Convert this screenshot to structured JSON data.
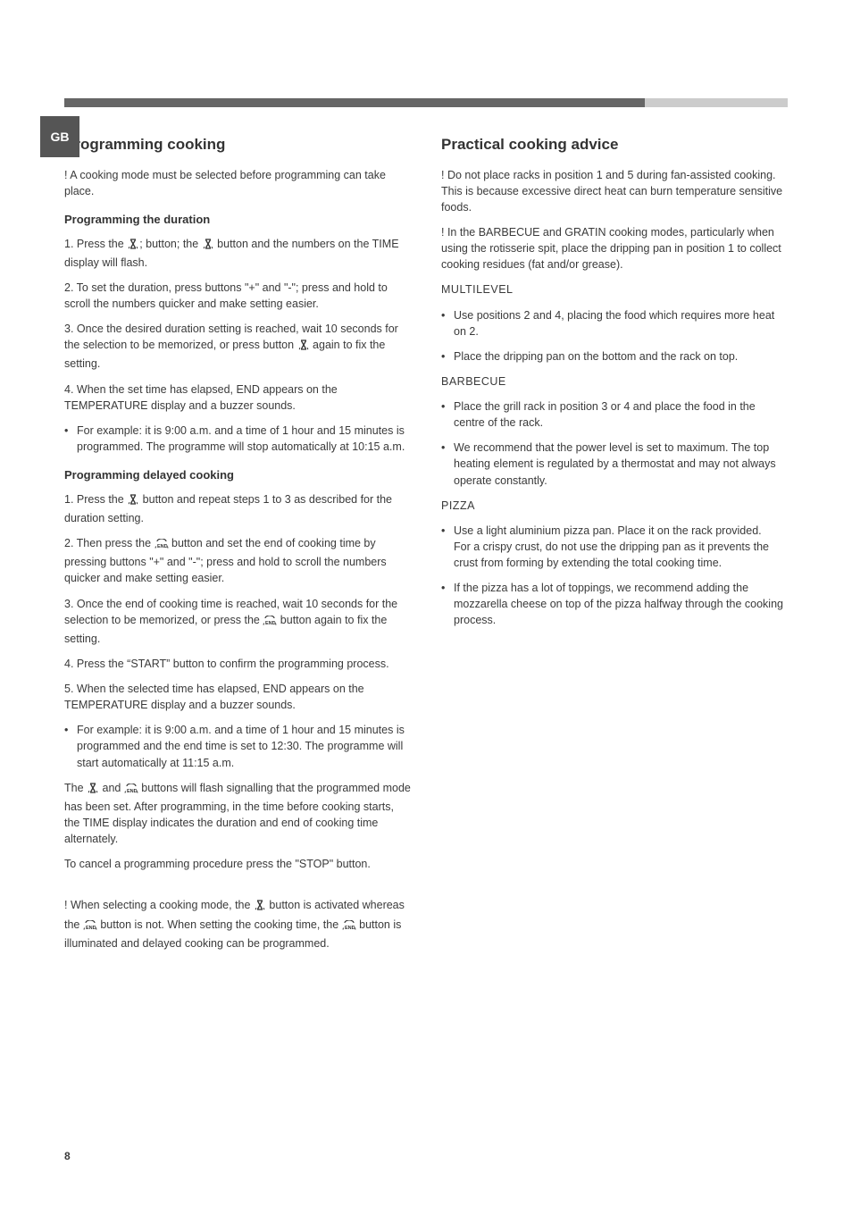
{
  "lang_tab": "GB",
  "page_number": "8",
  "icon_hourglass_svg": "<svg width='14' height='14' viewBox='0 0 14 14'><path d='M4 2 h6 M4 12 h6 M4.5 2.5 L9.5 11.5 M9.5 2.5 L4.5 11.5' stroke='#333' stroke-width='1.3' fill='none'/><path d='M2.8 10.2 L2.2 12.2 M11.2 10.2 L11.8 12.2' stroke='#333' stroke-width='1' fill='none'/></svg>",
  "icon_end_svg": "<svg width='16' height='12' viewBox='0 0 16 12'><path d='M3 3 a5 3 0 0 1 10 0' stroke='#333' stroke-width='1.1' fill='none'/><text x='3' y='10' font-size='5.5' font-family='Arial' font-weight='bold' fill='#333'>END</text><path d='M1.5 8.5 L1 10.5 M14.5 8.5 L15 10.5' stroke='#333' stroke-width='1' fill='none'/></svg>",
  "left": {
    "h2": "Programming cooking",
    "intro": "! A cooking mode must be selected before programming can take place.",
    "h3_duration": "Programming the duration",
    "dur1a": "1. Press the ",
    "dur1b": "; button; the ",
    "dur1c": " button and the numbers on the TIME display will flash.",
    "dur2": "2. To set the duration, press buttons \"+\" and \"-\"; press and hold to scroll the numbers quicker and make setting easier.",
    "dur3a": "3. Once the desired duration setting is reached, wait 10 seconds for the selection to be memorized, or press button ",
    "dur3b": " again to fix the setting.",
    "dur4": "4. When the set time has elapsed, END appears on the TEMPERATURE display and a buzzer sounds.",
    "dur_ex": "For example: it is 9:00 a.m. and a time of 1 hour and 15 minutes is programmed. The programme will stop automatically at 10:15 a.m.",
    "h3_delayed": "Programming delayed cooking",
    "del1a": "1. Press the ",
    "del1b": " button and repeat steps 1 to 3 as described for the duration setting.",
    "del2a": "2. Then press the ",
    "del2b": " button and set the end of cooking time by pressing buttons \"+\" and \"-\"; press and hold to scroll the numbers quicker and make setting easier.",
    "del3a": "3. Once the end of cooking time is reached, wait 10 seconds for the selection to be memorized, or press the ",
    "del3b": " button again to fix the setting.",
    "del4": "4. Press the “START” button to confirm the programming process.",
    "del5": "5. When the selected time has elapsed, END appears on the TEMPERATURE display and a buzzer sounds.",
    "del_ex": "For example: it is 9:00 a.m. and a time of 1 hour and 15 minutes is programmed and the end time is set to 12:30. The programme will start automatically at 11:15 a.m.",
    "del6a": "The ",
    "del6b": " and ",
    "del6c": " buttons will flash signalling that the programmed mode has been set. After programming, in the time before cooking starts, the TIME display indicates the duration and end of cooking time alternately.",
    "cancel": "To cancel a programming procedure press the \"STOP\" button.",
    "note_a": "! When selecting a cooking mode, the ",
    "note_b": " button is activated whereas the ",
    "note_c": " button is not. When setting the cooking time, the ",
    "note_d": " button is illuminated and delayed cooking can be programmed."
  },
  "right": {
    "h2": "Practical cooking advice",
    "p1": "! Do not place racks in position 1 and 5 during fan-assisted cooking. This is because excessive direct heat can burn temperature sensitive foods.",
    "p2": "! In the BARBECUE and GRATIN cooking modes, particularly when using the rotisserie spit, place the dripping pan in position 1 to collect cooking residues (fat and/or grease).",
    "sub_multi": "MULTILEVEL",
    "multi_li1": "Use positions 2 and 4, placing the food which requires more heat on 2.",
    "multi_li2": "Place the dripping pan on the bottom and the rack on top.",
    "sub_bbq": "BARBECUE",
    "bbq_li1": "Place the grill rack in position 3 or 4 and place the food in the centre of the rack.",
    "bbq_li2": "We recommend that the power level is set to maximum. The top heating element is regulated by a thermostat and may not always operate constantly.",
    "sub_pizza": "PIZZA",
    "pizza_li1": "Use a light aluminium pizza pan. Place it on the rack provided.\nFor a crispy crust, do not use the dripping pan as it prevents the crust from forming by extending the total cooking time.",
    "pizza_li2": "If the pizza has a lot of toppings, we recommend adding the mozzarella cheese on top of the pizza halfway through the cooking process."
  }
}
